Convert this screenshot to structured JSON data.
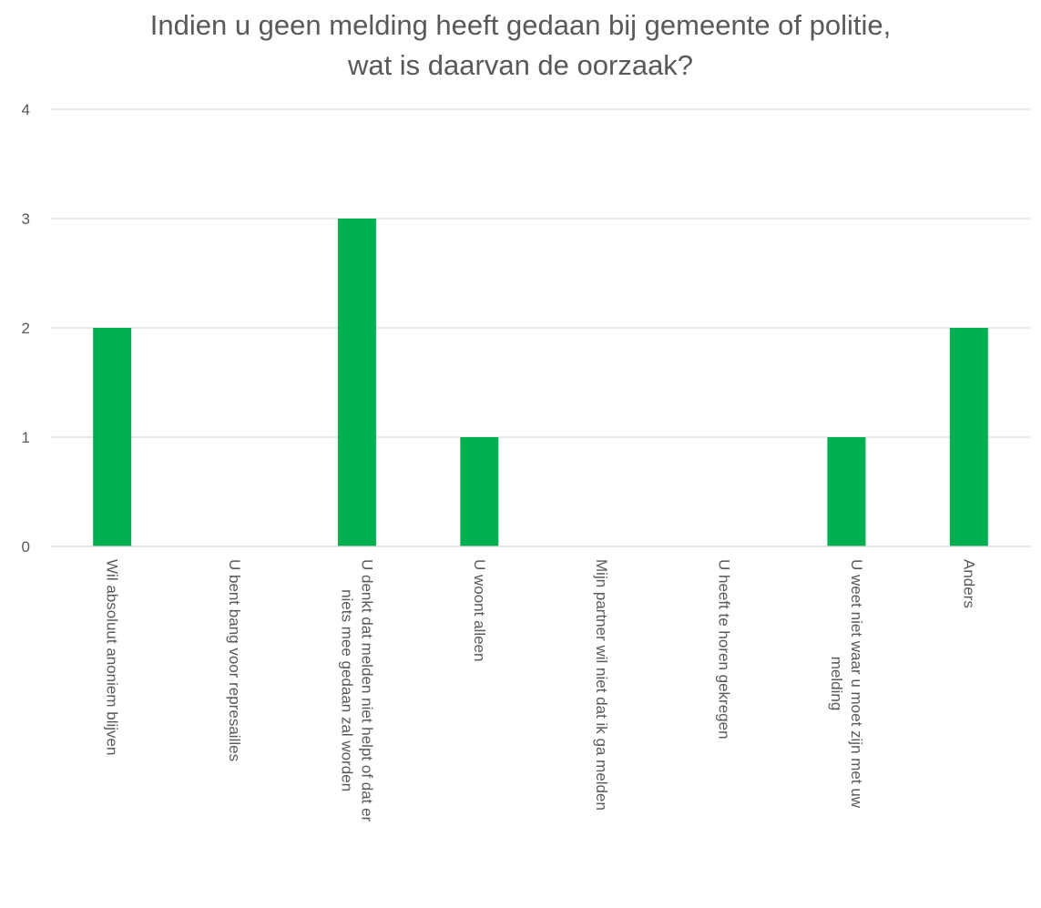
{
  "chart_data": {
    "type": "bar",
    "title": "Indien u geen melding heeft gedaan bij gemeente of politie,\nwat is daarvan de oorzaak?",
    "categories": [
      [
        "Wil absoluut anoniem blijven"
      ],
      [
        "U bent bang voor represailles"
      ],
      [
        "U denkt dat melden niet helpt of dat er",
        "niets mee gedaan zal worden"
      ],
      [
        "U woont alleen"
      ],
      [
        "Mijn partner wil niet dat ik ga melden"
      ],
      [
        "U heeft te horen gekregen"
      ],
      [
        "U weet niet waar u moet zijn met uw",
        "melding"
      ],
      [
        "Anders"
      ]
    ],
    "values": [
      2,
      0,
      3,
      1,
      0,
      0,
      1,
      2
    ],
    "yticks": [
      "0",
      "1",
      "2",
      "3",
      "4"
    ],
    "ylim": [
      0,
      4
    ],
    "grid": true,
    "bar_color": "#00b050",
    "gridline_color": "#d9d9d9",
    "text_color": "#595959"
  }
}
